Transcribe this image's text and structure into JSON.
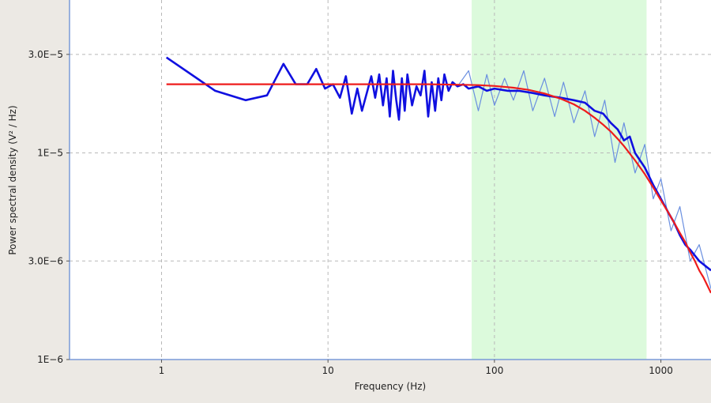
{
  "chart_data": {
    "type": "line",
    "title": "",
    "xlabel": "Frequency (Hz)",
    "ylabel": "Power spectral density (V² / Hz)",
    "x_scale": "log",
    "y_scale": "log",
    "xlim": [
      0.28,
      2000
    ],
    "ylim": [
      1e-06,
      5.5e-05
    ],
    "grid": true,
    "x_ticks": [
      {
        "value": 1,
        "label": "1"
      },
      {
        "value": 10,
        "label": "10"
      },
      {
        "value": 100,
        "label": "100"
      },
      {
        "value": 1000,
        "label": "1000"
      }
    ],
    "y_ticks": [
      {
        "value": 1e-06,
        "label": "1E−6"
      },
      {
        "value": 3e-06,
        "label": "3.0E−6"
      },
      {
        "value": 1e-05,
        "label": "1E−5"
      },
      {
        "value": 3e-05,
        "label": "3.0E−5"
      }
    ],
    "fit_band": {
      "from": 73,
      "to": 820,
      "color": "#dcfadc"
    },
    "series": [
      {
        "color": "#6a8fe0",
        "x": [
          60,
          70,
          80,
          90,
          100,
          115,
          130,
          150,
          170,
          200,
          230,
          260,
          300,
          350,
          400,
          460,
          530,
          600,
          700,
          800,
          900,
          1000,
          1150,
          1300,
          1500,
          1700,
          2000
        ],
        "y": [
          2.1e-05,
          2.5e-05,
          1.6e-05,
          2.4e-05,
          1.7e-05,
          2.3e-05,
          1.8e-05,
          2.5e-05,
          1.6e-05,
          2.3e-05,
          1.5e-05,
          2.2e-05,
          1.4e-05,
          2e-05,
          1.2e-05,
          1.8e-05,
          9e-06,
          1.4e-05,
          8e-06,
          1.1e-05,
          6e-06,
          7.5e-06,
          4.2e-06,
          5.5e-06,
          3e-06,
          3.6e-06,
          2.2e-06
        ]
      },
      {
        "color": "#1010e0",
        "x": [
          1.07,
          2.1,
          3.2,
          4.3,
          5.4,
          6.4,
          7.5,
          8.5,
          9.6,
          10.7,
          11.8,
          12.8,
          13.9,
          15,
          16,
          17.1,
          18.2,
          19.2,
          20.3,
          21.4,
          22.5,
          23.5,
          24.6,
          25.7,
          26.7,
          27.8,
          28.9,
          30,
          32,
          34,
          36,
          38,
          40,
          42,
          44,
          46,
          48,
          50,
          53,
          56,
          60,
          65,
          70,
          80,
          90,
          100,
          120,
          140,
          170,
          200,
          250,
          300,
          350,
          400,
          450,
          500,
          550,
          600,
          650,
          700,
          800,
          900,
          1000,
          1100,
          1200,
          1300,
          1400,
          1500,
          1700,
          2000
        ],
        "y": [
          2.9e-05,
          2e-05,
          1.8e-05,
          1.9e-05,
          2.7e-05,
          2.15e-05,
          2.15e-05,
          2.55e-05,
          2.05e-05,
          2.15e-05,
          1.85e-05,
          2.35e-05,
          1.55e-05,
          2.05e-05,
          1.6e-05,
          1.95e-05,
          2.35e-05,
          1.85e-05,
          2.4e-05,
          1.7e-05,
          2.3e-05,
          1.5e-05,
          2.5e-05,
          1.8e-05,
          1.45e-05,
          2.3e-05,
          1.6e-05,
          2.4e-05,
          1.7e-05,
          2.1e-05,
          1.9e-05,
          2.5e-05,
          1.5e-05,
          2.2e-05,
          1.6e-05,
          2.3e-05,
          1.8e-05,
          2.4e-05,
          2e-05,
          2.2e-05,
          2.1e-05,
          2.15e-05,
          2.05e-05,
          2.1e-05,
          2e-05,
          2.05e-05,
          2e-05,
          2e-05,
          1.95e-05,
          1.9e-05,
          1.85e-05,
          1.8e-05,
          1.75e-05,
          1.6e-05,
          1.55e-05,
          1.4e-05,
          1.3e-05,
          1.15e-05,
          1.2e-05,
          1e-05,
          8.5e-06,
          7e-06,
          6e-06,
          5.2e-06,
          4.6e-06,
          4e-06,
          3.6e-06,
          3.4e-06,
          3e-06,
          2.7e-06
        ]
      },
      {
        "color": "#ee1c1c",
        "x": [
          1.07,
          2,
          5,
          10,
          20,
          40,
          60,
          80,
          100,
          130,
          160,
          200,
          250,
          300,
          350,
          400,
          450,
          500,
          550,
          600,
          700,
          800,
          900,
          1000,
          1100,
          1200,
          1300,
          1400,
          1500,
          1600,
          1700,
          1800,
          2000
        ],
        "y": [
          2.15e-05,
          2.15e-05,
          2.15e-05,
          2.15e-05,
          2.15e-05,
          2.15e-05,
          2.14e-05,
          2.13e-05,
          2.11e-05,
          2.07e-05,
          2.02e-05,
          1.94e-05,
          1.83e-05,
          1.72e-05,
          1.6e-05,
          1.48e-05,
          1.37e-05,
          1.27e-05,
          1.17e-05,
          1.08e-05,
          9.2e-06,
          7.9e-06,
          6.8e-06,
          5.9e-06,
          5.2e-06,
          4.6e-06,
          4.1e-06,
          3.7e-06,
          3.3e-06,
          3e-06,
          2.7e-06,
          2.5e-06,
          2.1e-06
        ]
      }
    ]
  }
}
